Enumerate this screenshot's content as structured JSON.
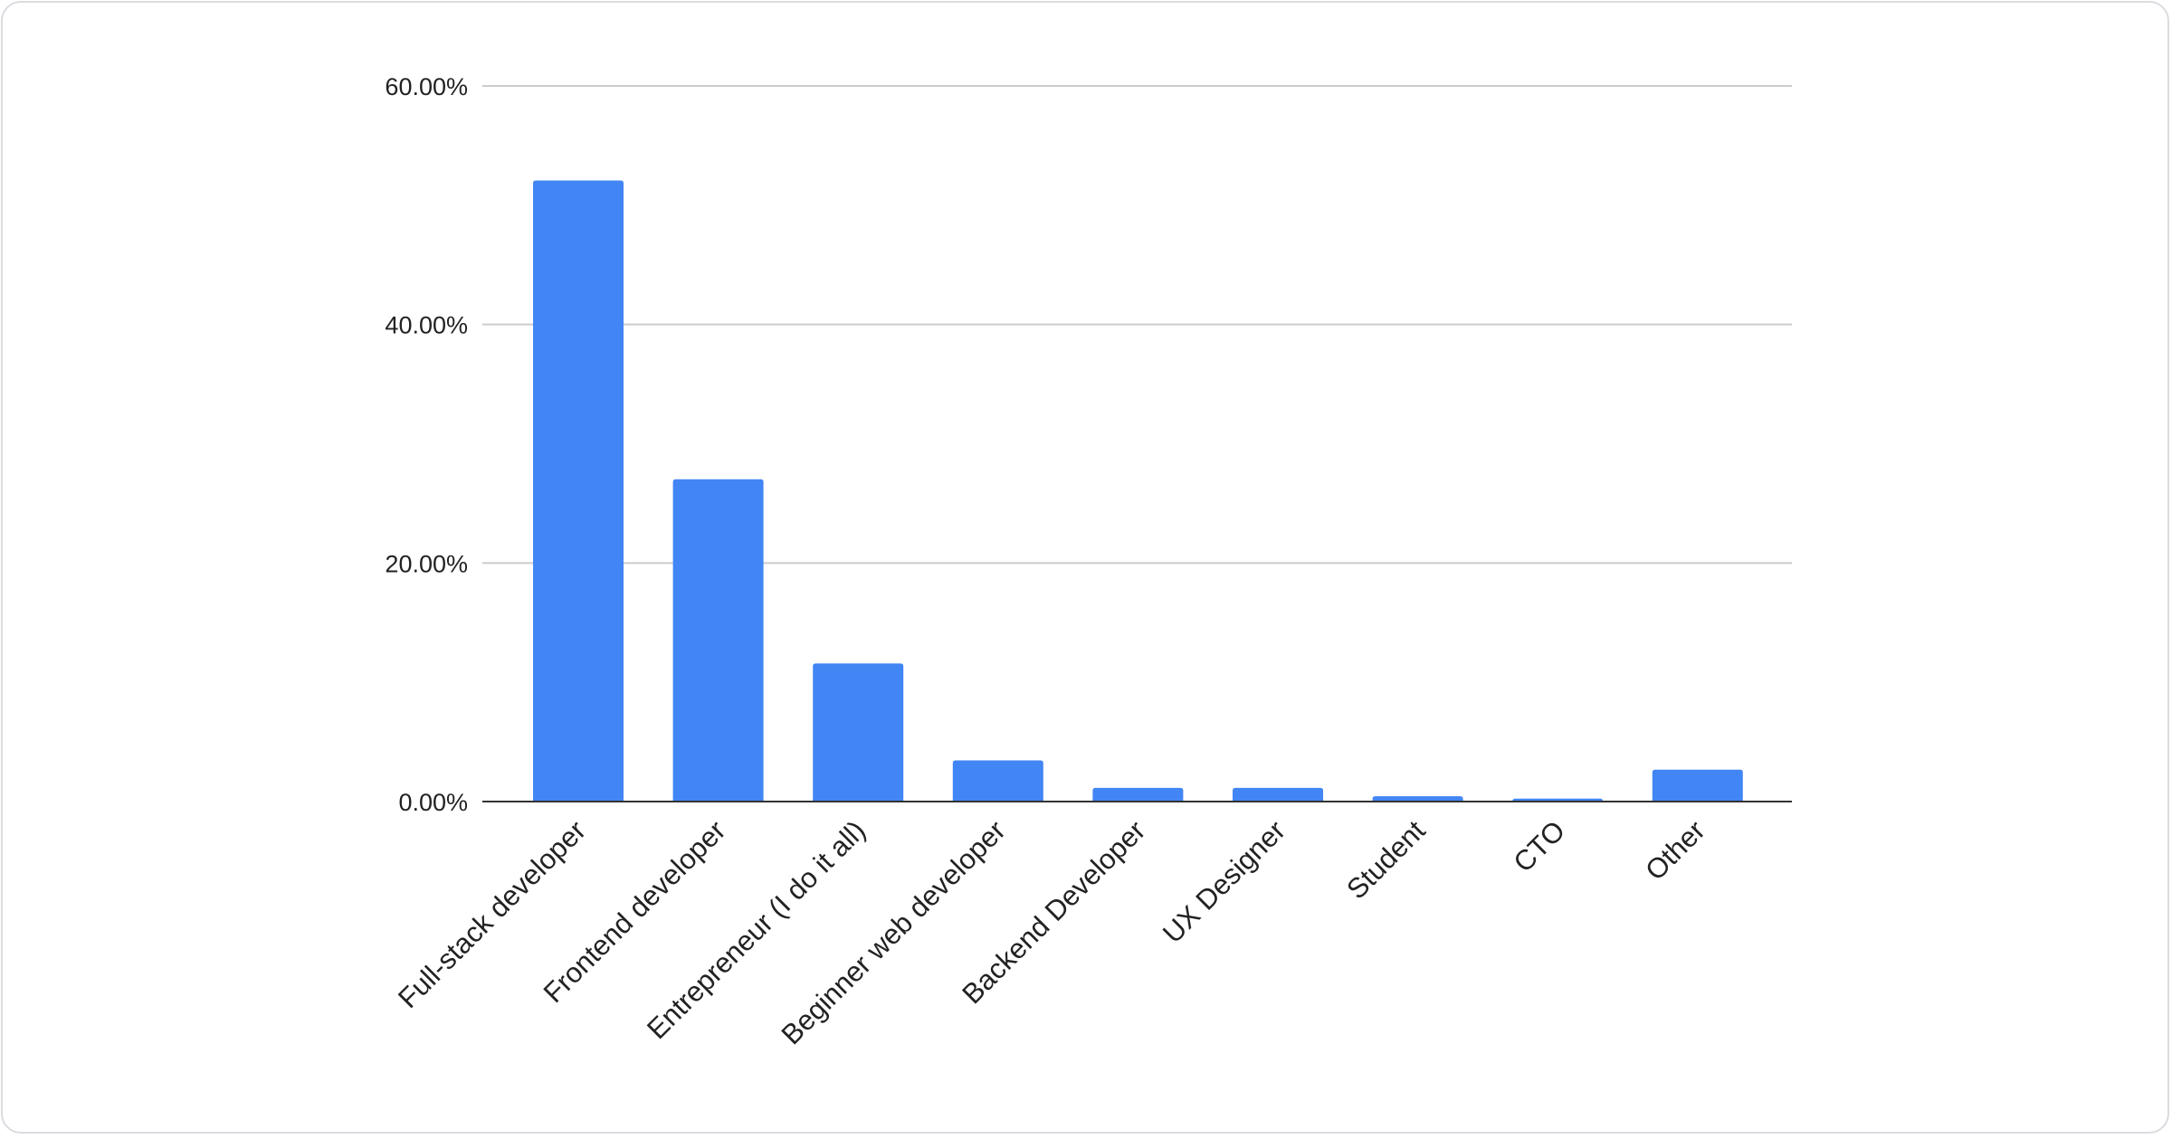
{
  "chart_data": {
    "type": "bar",
    "title": "",
    "xlabel": "",
    "ylabel": "",
    "categories": [
      "Full-stack developer",
      "Frontend developer",
      "Entrepreneur (I do it all)",
      "Beginner web developer",
      "Backend Developer",
      "UX Designer",
      "Student",
      "CTO",
      "Other"
    ],
    "values": [
      52.07,
      27.02,
      11.58,
      3.45,
      1.15,
      1.15,
      0.45,
      0.25,
      2.67
    ],
    "ylim": [
      0,
      60
    ],
    "yticks": [
      0,
      20,
      40,
      60
    ],
    "ytick_labels": [
      "0.00%",
      "20.00%",
      "40.00%",
      "60.00%"
    ],
    "grid": true,
    "legend": "none",
    "bar_color": "#4285f4"
  }
}
